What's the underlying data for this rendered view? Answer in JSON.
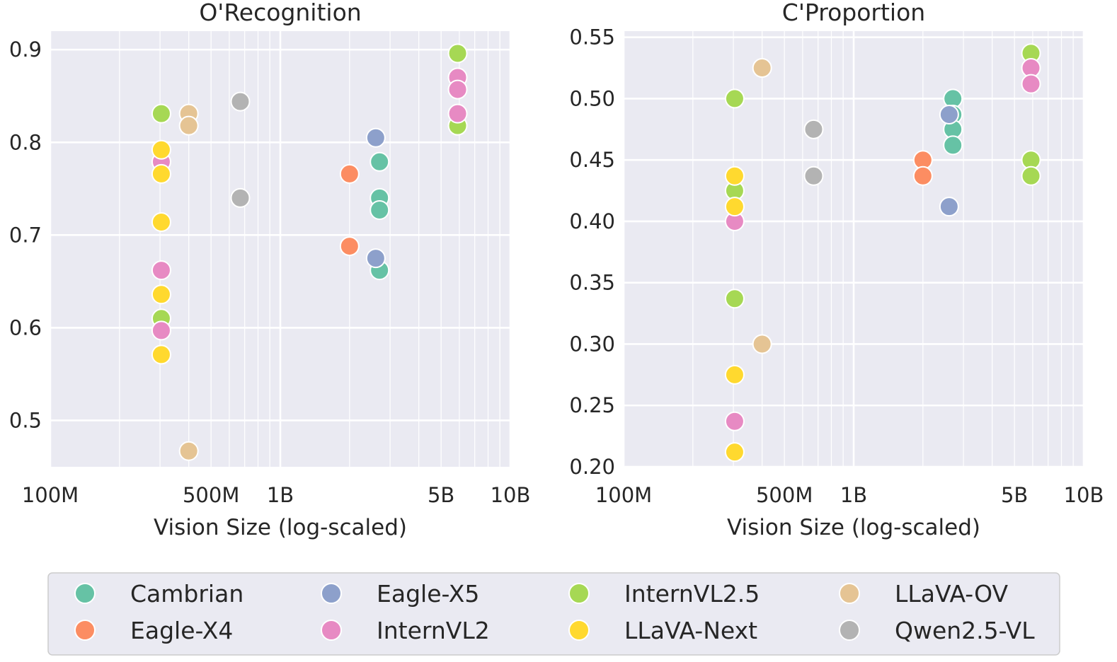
{
  "legend": {
    "entries": [
      {
        "name": "Cambrian",
        "color": "#66c2a5"
      },
      {
        "name": "Eagle-X5",
        "color": "#8da0cb"
      },
      {
        "name": "InternVL2.5",
        "color": "#a6d854"
      },
      {
        "name": "LLaVA-OV",
        "color": "#e5c494"
      },
      {
        "name": "Eagle-X4",
        "color": "#fc8d62"
      },
      {
        "name": "InternVL2",
        "color": "#e78ac3"
      },
      {
        "name": "LLaVA-Next",
        "color": "#ffd92f"
      },
      {
        "name": "Qwen2.5-VL",
        "color": "#b3b3b3"
      }
    ]
  },
  "chart_data": [
    {
      "type": "scatter",
      "title": "O'Recognition",
      "xlabel": "Vision Size (log-scaled)",
      "ylabel": "",
      "xscale": "log",
      "xlim": [
        100000000,
        10000000000
      ],
      "ylim": [
        0.45,
        0.92
      ],
      "xticks": [
        {
          "value": 100000000,
          "label": "100M"
        },
        {
          "value": 500000000,
          "label": "500M"
        },
        {
          "value": 1000000000,
          "label": "1B"
        },
        {
          "value": 5000000000,
          "label": "5B"
        },
        {
          "value": 10000000000,
          "label": "10B"
        }
      ],
      "yticks": [
        {
          "value": 0.5,
          "label": "0.5"
        },
        {
          "value": 0.6,
          "label": "0.6"
        },
        {
          "value": 0.7,
          "label": "0.7"
        },
        {
          "value": 0.8,
          "label": "0.8"
        },
        {
          "value": 0.9,
          "label": "0.9"
        }
      ],
      "grid": true,
      "series": [
        {
          "name": "Cambrian",
          "x": [
            2700000000,
            2700000000,
            2700000000,
            2700000000
          ],
          "y": [
            0.779,
            0.74,
            0.727,
            0.662
          ]
        },
        {
          "name": "Eagle-X5",
          "x": [
            2600000000,
            2600000000
          ],
          "y": [
            0.805,
            0.675
          ]
        },
        {
          "name": "InternVL2.5",
          "x": [
            304000000,
            304000000,
            5900000000,
            5900000000
          ],
          "y": [
            0.831,
            0.61,
            0.896,
            0.818
          ]
        },
        {
          "name": "LLaVA-OV",
          "x": [
            400000000,
            400000000,
            400000000
          ],
          "y": [
            0.831,
            0.818,
            0.467
          ]
        },
        {
          "name": "Eagle-X4",
          "x": [
            2000000000,
            2000000000
          ],
          "y": [
            0.766,
            0.688
          ]
        },
        {
          "name": "InternVL2",
          "x": [
            304000000,
            304000000,
            304000000,
            5900000000,
            5900000000,
            5900000000
          ],
          "y": [
            0.779,
            0.662,
            0.597,
            0.87,
            0.857,
            0.831
          ]
        },
        {
          "name": "LLaVA-Next",
          "x": [
            304000000,
            304000000,
            304000000,
            304000000,
            304000000
          ],
          "y": [
            0.792,
            0.766,
            0.714,
            0.636,
            0.571
          ]
        },
        {
          "name": "Qwen2.5-VL",
          "x": [
            670000000,
            670000000
          ],
          "y": [
            0.844,
            0.74
          ]
        }
      ]
    },
    {
      "type": "scatter",
      "title": "C'Proportion",
      "xlabel": "Vision Size (log-scaled)",
      "ylabel": "",
      "xscale": "log",
      "xlim": [
        100000000,
        10000000000
      ],
      "ylim": [
        0.2,
        0.555
      ],
      "xticks": [
        {
          "value": 100000000,
          "label": "100M"
        },
        {
          "value": 500000000,
          "label": "500M"
        },
        {
          "value": 1000000000,
          "label": "1B"
        },
        {
          "value": 5000000000,
          "label": "5B"
        },
        {
          "value": 10000000000,
          "label": "10B"
        }
      ],
      "yticks": [
        {
          "value": 0.2,
          "label": "0.20"
        },
        {
          "value": 0.25,
          "label": "0.25"
        },
        {
          "value": 0.3,
          "label": "0.30"
        },
        {
          "value": 0.35,
          "label": "0.35"
        },
        {
          "value": 0.4,
          "label": "0.40"
        },
        {
          "value": 0.45,
          "label": "0.45"
        },
        {
          "value": 0.5,
          "label": "0.50"
        },
        {
          "value": 0.55,
          "label": "0.55"
        }
      ],
      "grid": true,
      "series": [
        {
          "name": "Cambrian",
          "x": [
            2700000000,
            2700000000,
            2700000000,
            2700000000
          ],
          "y": [
            0.5,
            0.487,
            0.475,
            0.462
          ]
        },
        {
          "name": "Eagle-X5",
          "x": [
            2600000000,
            2600000000
          ],
          "y": [
            0.487,
            0.412
          ]
        },
        {
          "name": "InternVL2.5",
          "x": [
            304000000,
            304000000,
            304000000,
            5900000000,
            5900000000,
            5900000000
          ],
          "y": [
            0.5,
            0.425,
            0.337,
            0.537,
            0.45,
            0.437
          ]
        },
        {
          "name": "LLaVA-OV",
          "x": [
            400000000,
            400000000
          ],
          "y": [
            0.525,
            0.3
          ]
        },
        {
          "name": "Eagle-X4",
          "x": [
            2000000000,
            2000000000
          ],
          "y": [
            0.45,
            0.437
          ]
        },
        {
          "name": "InternVL2",
          "x": [
            304000000,
            304000000,
            5900000000,
            5900000000
          ],
          "y": [
            0.4,
            0.237,
            0.525,
            0.512
          ]
        },
        {
          "name": "LLaVA-Next",
          "x": [
            304000000,
            304000000,
            304000000,
            304000000
          ],
          "y": [
            0.437,
            0.412,
            0.275,
            0.212
          ]
        },
        {
          "name": "Qwen2.5-VL",
          "x": [
            670000000,
            670000000
          ],
          "y": [
            0.475,
            0.437
          ]
        }
      ]
    }
  ]
}
